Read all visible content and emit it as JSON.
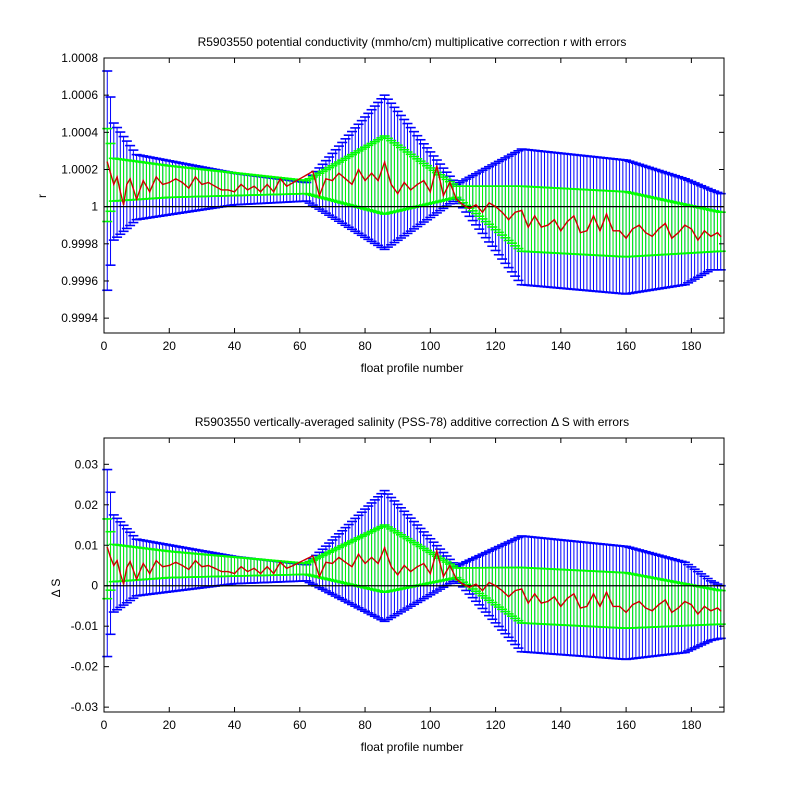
{
  "chart_data": [
    {
      "type": "line",
      "title": "R5903550 potential conductivity (mmho/cm) multiplicative correction r with errors",
      "xlabel": "float profile number",
      "ylabel": "r",
      "xlim": [
        0,
        190
      ],
      "ylim": [
        0.99932,
        1.0008
      ],
      "xticks": [
        0,
        20,
        40,
        60,
        80,
        100,
        120,
        140,
        160,
        180
      ],
      "yticks": [
        0.9994,
        0.9996,
        0.9998,
        1,
        1.0002,
        1.0004,
        1.0006,
        1.0008
      ],
      "ytick_labels": [
        "0.9994",
        "0.9996",
        "0.9998",
        "1",
        "1.0002",
        "1.0004",
        "1.0006",
        "1.0008"
      ],
      "reference_line": 1,
      "grid": false,
      "colors": {
        "outer_error": "#0000ff",
        "inner_error": "#00ff00",
        "series": "#cc0000",
        "reference": "#000000"
      },
      "outer_error_knots": [
        {
          "x": 1,
          "upper": 1.00073,
          "lower": 0.99955
        },
        {
          "x": 3,
          "upper": 1.00045,
          "lower": 0.99982
        },
        {
          "x": 10,
          "upper": 1.00028,
          "lower": 0.99993
        },
        {
          "x": 40,
          "upper": 1.00018,
          "lower": 1.00001
        },
        {
          "x": 62,
          "upper": 1.00013,
          "lower": 1.00003
        },
        {
          "x": 86,
          "upper": 1.0006,
          "lower": 0.99977
        },
        {
          "x": 108,
          "upper": 1.00012,
          "lower": 1.00004
        },
        {
          "x": 128,
          "upper": 1.00031,
          "lower": 0.99958
        },
        {
          "x": 160,
          "upper": 1.00025,
          "lower": 0.99953
        },
        {
          "x": 178,
          "upper": 1.00015,
          "lower": 0.99958
        },
        {
          "x": 186,
          "upper": 1.00009,
          "lower": 0.99966
        },
        {
          "x": 189,
          "upper": 1.00007,
          "lower": 0.99966
        }
      ],
      "inner_error_knots": [
        {
          "x": 1,
          "upper": 1.00042,
          "lower": 0.99992
        },
        {
          "x": 3,
          "upper": 1.00026,
          "lower": 1.00003
        },
        {
          "x": 20,
          "upper": 1.00022,
          "lower": 1.00005
        },
        {
          "x": 62,
          "upper": 1.00014,
          "lower": 1.00007
        },
        {
          "x": 86,
          "upper": 1.00038,
          "lower": 0.99996
        },
        {
          "x": 108,
          "upper": 1.00011,
          "lower": 1.00005
        },
        {
          "x": 128,
          "upper": 1.00011,
          "lower": 0.99976
        },
        {
          "x": 160,
          "upper": 1.00008,
          "lower": 0.99973
        },
        {
          "x": 189,
          "upper": 0.99997,
          "lower": 0.99976
        }
      ],
      "series": [
        {
          "x": [
            1,
            2,
            3,
            4,
            5,
            6,
            7,
            8,
            10,
            12,
            14,
            16,
            18,
            20,
            22,
            24,
            26,
            28,
            30,
            32,
            34,
            36,
            38,
            40,
            42,
            44,
            46,
            48,
            50,
            52,
            54,
            56,
            58,
            60,
            62,
            64,
            66,
            68,
            70,
            72,
            74,
            76,
            78,
            80,
            82,
            84,
            86,
            88,
            90,
            92,
            94,
            96,
            98,
            100,
            102,
            104,
            106,
            108,
            110,
            112,
            114,
            116,
            118,
            120,
            122,
            124,
            126,
            128,
            130,
            132,
            134,
            136,
            138,
            140,
            142,
            144,
            146,
            148,
            150,
            152,
            154,
            156,
            158,
            160,
            162,
            164,
            166,
            168,
            170,
            172,
            174,
            176,
            178,
            180,
            182,
            184,
            186,
            188,
            189
          ],
          "values": [
            1.00024,
            1.00018,
            1.00012,
            1.00016,
            1.00008,
            1.00001,
            1.00012,
            1.00015,
            1.00004,
            1.00014,
            1.00008,
            1.00016,
            1.00012,
            1.00013,
            1.00015,
            1.00013,
            1.0001,
            1.00016,
            1.00012,
            1.00013,
            1.00011,
            1.00009,
            1.00009,
            1.00008,
            1.00012,
            1.00009,
            1.00011,
            1.00008,
            1.00012,
            1.00008,
            1.00015,
            1.00011,
            1.00013,
            1.00015,
            1.00017,
            1.00019,
            1.00006,
            1.00015,
            1.00014,
            1.00018,
            1.00015,
            1.00012,
            1.0002,
            1.00014,
            1.00018,
            1.00014,
            1.00024,
            1.00012,
            1.00007,
            1.00013,
            1.00009,
            1.00012,
            1.00014,
            1.00008,
            1.00022,
            1.00006,
            1.00013,
            1.00004,
            1.00001,
            0.99999,
            1.00001,
            0.99997,
            1.00002,
            1.0,
            0.99997,
            0.99993,
            0.99997,
            0.99998,
            0.99989,
            0.99995,
            0.99989,
            0.9999,
            0.99993,
            0.99987,
            0.99992,
            0.99995,
            0.99986,
            0.99987,
            0.99995,
            0.99987,
            0.99996,
            0.99987,
            0.99987,
            0.99983,
            0.99988,
            0.9999,
            0.99986,
            0.99984,
            0.99988,
            0.99991,
            0.99983,
            0.99986,
            0.9999,
            0.99988,
            0.99982,
            0.99987,
            0.99984,
            0.99986,
            0.99984
          ]
        }
      ]
    },
    {
      "type": "line",
      "title": "R5903550 vertically-averaged salinity (PSS-78) additive correction Δ S with errors",
      "xlabel": "float profile number",
      "ylabel": "Δ S",
      "xlim": [
        0,
        190
      ],
      "ylim": [
        -0.0312,
        0.0365
      ],
      "xticks": [
        0,
        20,
        40,
        60,
        80,
        100,
        120,
        140,
        160,
        180
      ],
      "yticks": [
        -0.03,
        -0.02,
        -0.01,
        0,
        0.01,
        0.02,
        0.03
      ],
      "ytick_labels": [
        "-0.03",
        "-0.02",
        "-0.01",
        "0",
        "0.01",
        "0.02",
        "0.03"
      ],
      "reference_line": 0,
      "grid": false,
      "colors": {
        "outer_error": "#0000ff",
        "inner_error": "#00ff00",
        "series": "#cc0000",
        "reference": "#000000"
      },
      "outer_error_knots": [
        {
          "x": 1,
          "upper": 0.0287,
          "lower": -0.0175
        },
        {
          "x": 3,
          "upper": 0.0175,
          "lower": -0.0065
        },
        {
          "x": 10,
          "upper": 0.0115,
          "lower": -0.0025
        },
        {
          "x": 40,
          "upper": 0.0072,
          "lower": 0.0005
        },
        {
          "x": 62,
          "upper": 0.0052,
          "lower": 0.0012
        },
        {
          "x": 86,
          "upper": 0.0235,
          "lower": -0.0088
        },
        {
          "x": 108,
          "upper": 0.0048,
          "lower": 0.0015
        },
        {
          "x": 128,
          "upper": 0.0123,
          "lower": -0.0163
        },
        {
          "x": 160,
          "upper": 0.0097,
          "lower": -0.0182
        },
        {
          "x": 178,
          "upper": 0.0058,
          "lower": -0.0165
        },
        {
          "x": 186,
          "upper": 0.0012,
          "lower": -0.0135
        },
        {
          "x": 189,
          "upper": 0.0,
          "lower": -0.013
        }
      ],
      "inner_error_knots": [
        {
          "x": 1,
          "upper": 0.0165,
          "lower": -0.0032
        },
        {
          "x": 3,
          "upper": 0.0102,
          "lower": 0.001
        },
        {
          "x": 20,
          "upper": 0.0085,
          "lower": 0.002
        },
        {
          "x": 62,
          "upper": 0.0055,
          "lower": 0.0028
        },
        {
          "x": 86,
          "upper": 0.015,
          "lower": -0.0016
        },
        {
          "x": 108,
          "upper": 0.0044,
          "lower": 0.002
        },
        {
          "x": 128,
          "upper": 0.0045,
          "lower": -0.0092
        },
        {
          "x": 160,
          "upper": 0.0032,
          "lower": -0.0105
        },
        {
          "x": 189,
          "upper": -0.0012,
          "lower": -0.0095
        }
      ],
      "series": [
        {
          "x": [
            1,
            2,
            3,
            4,
            5,
            6,
            7,
            8,
            10,
            12,
            14,
            16,
            18,
            20,
            22,
            24,
            26,
            28,
            30,
            32,
            34,
            36,
            38,
            40,
            42,
            44,
            46,
            48,
            50,
            52,
            54,
            56,
            58,
            60,
            62,
            64,
            66,
            68,
            70,
            72,
            74,
            76,
            78,
            80,
            82,
            84,
            86,
            88,
            90,
            92,
            94,
            96,
            98,
            100,
            102,
            104,
            106,
            108,
            110,
            112,
            114,
            116,
            118,
            120,
            122,
            124,
            126,
            128,
            130,
            132,
            134,
            136,
            138,
            140,
            142,
            144,
            146,
            148,
            150,
            152,
            154,
            156,
            158,
            160,
            162,
            164,
            166,
            168,
            170,
            172,
            174,
            176,
            178,
            180,
            182,
            184,
            186,
            188,
            189
          ],
          "values": [
            0.0095,
            0.007,
            0.005,
            0.0062,
            0.003,
            0.0004,
            0.0045,
            0.006,
            0.0016,
            0.0055,
            0.003,
            0.0062,
            0.0047,
            0.005,
            0.0058,
            0.005,
            0.004,
            0.0062,
            0.0047,
            0.005,
            0.0043,
            0.0035,
            0.0035,
            0.003,
            0.0047,
            0.0035,
            0.0043,
            0.003,
            0.0047,
            0.003,
            0.0058,
            0.0043,
            0.005,
            0.0058,
            0.0066,
            0.0074,
            0.0023,
            0.0058,
            0.0055,
            0.007,
            0.0058,
            0.0047,
            0.0078,
            0.0055,
            0.007,
            0.0055,
            0.0094,
            0.0047,
            0.0027,
            0.005,
            0.0035,
            0.0047,
            0.0055,
            0.003,
            0.0086,
            0.0023,
            0.005,
            0.0016,
            0.0004,
            -0.0004,
            0.0004,
            -0.0012,
            0.0008,
            0.0,
            -0.0012,
            -0.0027,
            -0.0012,
            -0.0008,
            -0.0043,
            -0.002,
            -0.0043,
            -0.0039,
            -0.0027,
            -0.0051,
            -0.0031,
            -0.002,
            -0.0055,
            -0.0051,
            -0.002,
            -0.0051,
            -0.0016,
            -0.0051,
            -0.0051,
            -0.0066,
            -0.0047,
            -0.0039,
            -0.0055,
            -0.0062,
            -0.0047,
            -0.0035,
            -0.0066,
            -0.0055,
            -0.0039,
            -0.0047,
            -0.007,
            -0.0051,
            -0.0062,
            -0.0055,
            -0.0062
          ]
        }
      ]
    }
  ]
}
